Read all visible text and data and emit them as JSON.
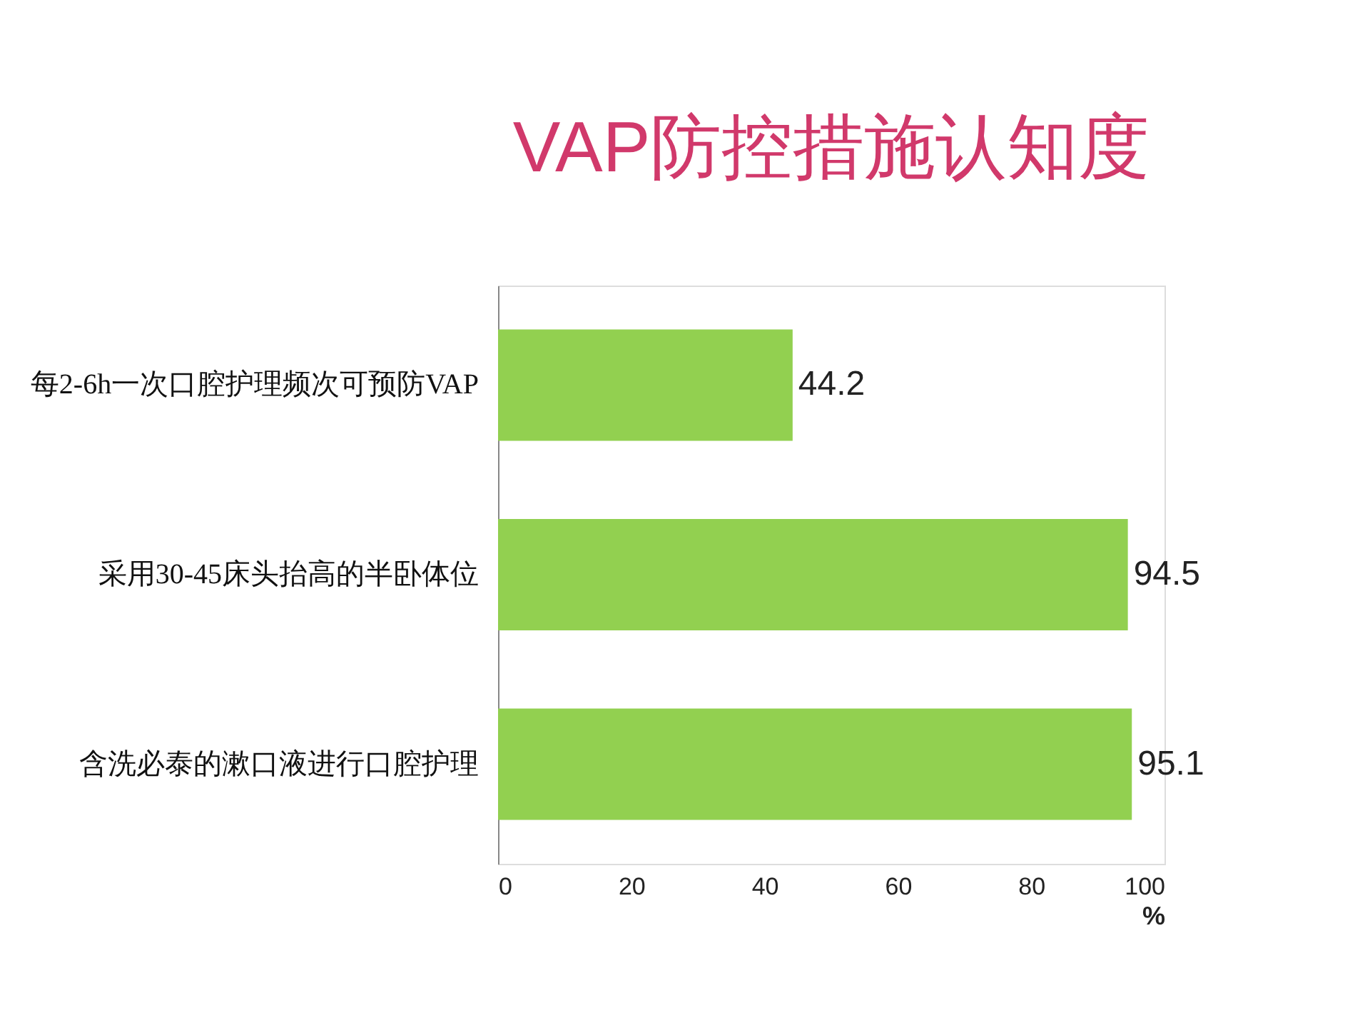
{
  "chart_data": {
    "type": "bar",
    "orientation": "horizontal",
    "title": "VAP防控措施认知度",
    "categories": [
      "每2-6h一次口腔护理频次可预防VAP",
      "采用30-45床头抬高的半卧体位",
      "含洗必泰的漱口液进行口腔护理"
    ],
    "values": [
      44.2,
      94.5,
      95.1
    ],
    "color": "#92d050",
    "xlim": [
      0,
      100
    ],
    "xticks": [
      0,
      20,
      40,
      60,
      80,
      100
    ],
    "xlabel": "%",
    "data_labels": true,
    "grid": false
  }
}
